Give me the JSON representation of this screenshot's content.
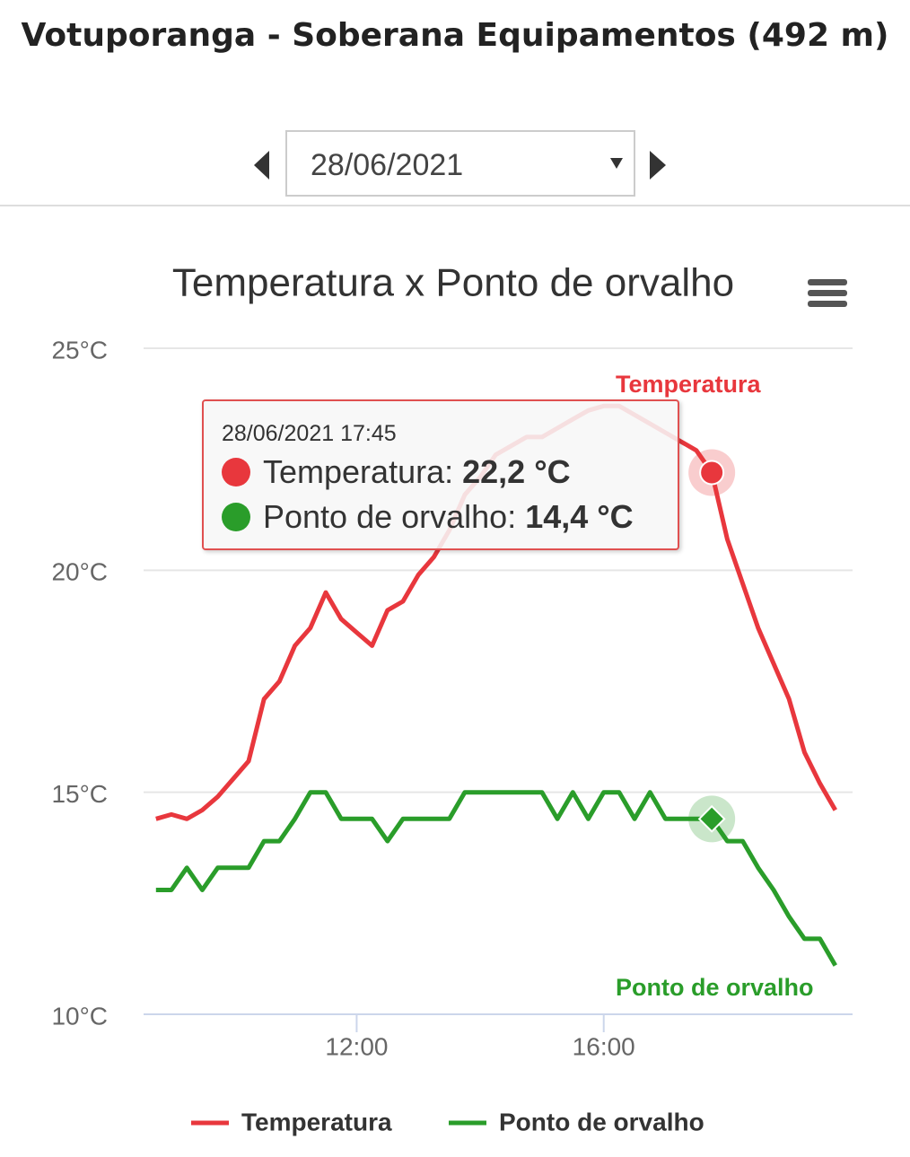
{
  "header": {
    "title": "Votuporanga - Soberana Equipamentos (492 m)",
    "date": "28/06/2021"
  },
  "chart_data": {
    "type": "line",
    "title": "Temperatura x Ponto de orvalho",
    "x": [
      8.75,
      9.0,
      9.25,
      9.5,
      9.75,
      10.0,
      10.25,
      10.5,
      10.75,
      11.0,
      11.25,
      11.5,
      11.75,
      12.0,
      12.25,
      12.5,
      12.75,
      13.0,
      13.25,
      13.5,
      13.75,
      14.0,
      14.25,
      14.5,
      14.75,
      15.0,
      15.25,
      15.5,
      15.75,
      16.0,
      16.25,
      16.5,
      16.75,
      17.0,
      17.25,
      17.5,
      17.75,
      18.0,
      18.25,
      18.5,
      18.75,
      19.0,
      19.25,
      19.5,
      19.75
    ],
    "series": [
      {
        "name": "Temperatura",
        "color": "#e8373d",
        "values": [
          14.4,
          14.5,
          14.4,
          14.6,
          14.9,
          15.3,
          15.7,
          17.1,
          17.5,
          18.3,
          18.7,
          19.5,
          18.9,
          18.6,
          18.3,
          19.1,
          19.3,
          19.9,
          20.3,
          20.9,
          21.7,
          22.1,
          22.6,
          22.8,
          23.0,
          23.0,
          23.2,
          23.4,
          23.6,
          23.7,
          23.7,
          23.5,
          23.3,
          23.1,
          22.9,
          22.7,
          22.2,
          20.7,
          19.7,
          18.7,
          17.9,
          17.1,
          15.9,
          15.2,
          14.6
        ]
      },
      {
        "name": "Ponto de orvalho",
        "color": "#2a9d2a",
        "values": [
          12.8,
          12.8,
          13.3,
          12.8,
          13.3,
          13.3,
          13.3,
          13.9,
          13.9,
          14.4,
          15.0,
          15.0,
          14.4,
          14.4,
          14.4,
          13.9,
          14.4,
          14.4,
          14.4,
          14.4,
          15.0,
          15.0,
          15.0,
          15.0,
          15.0,
          15.0,
          14.4,
          15.0,
          14.4,
          15.0,
          15.0,
          14.4,
          15.0,
          14.4,
          14.4,
          14.4,
          14.4,
          13.9,
          13.9,
          13.3,
          12.8,
          12.2,
          11.7,
          11.7,
          11.1
        ]
      }
    ],
    "xlim": [
      8.55,
      20.0
    ],
    "xticks": [
      {
        "value": 12,
        "label": "12:00"
      },
      {
        "value": 16,
        "label": "16:00"
      }
    ],
    "ylim": [
      10,
      25
    ],
    "yticks": [
      {
        "value": 10,
        "label": "10°C"
      },
      {
        "value": 15,
        "label": "15°C"
      },
      {
        "value": 20,
        "label": "20°C"
      },
      {
        "value": 25,
        "label": "25°C"
      }
    ],
    "grid": true,
    "legend": "bottom",
    "tooltip": {
      "title": "28/06/2021 17:45",
      "x": 17.75,
      "labels": [
        "22,2 °C",
        "14,4 °C"
      ]
    }
  }
}
